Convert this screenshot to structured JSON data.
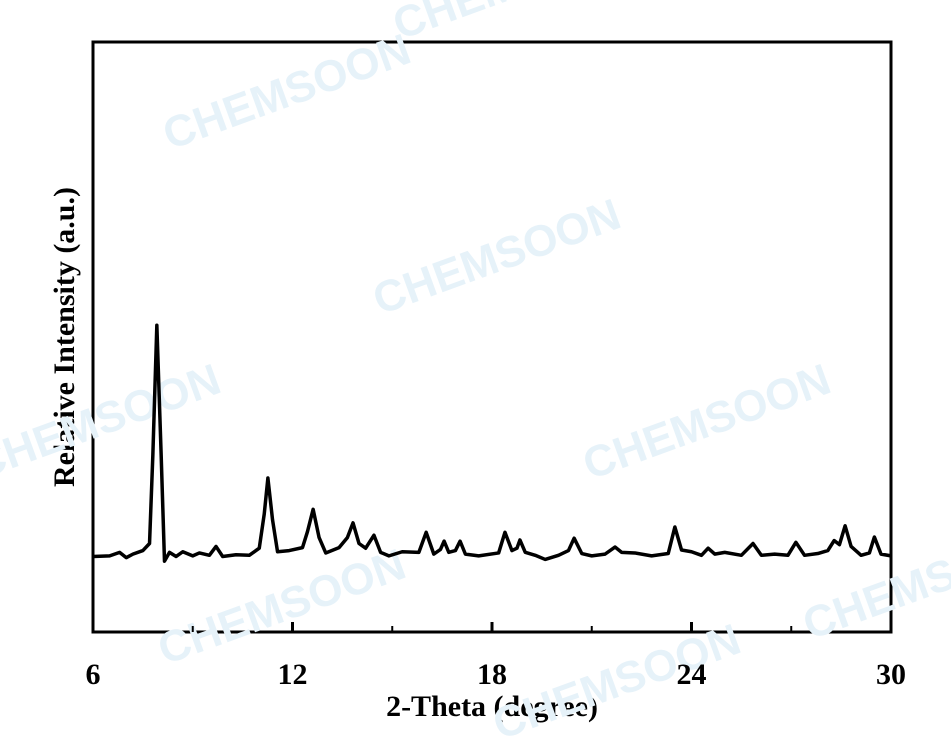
{
  "chart_data": {
    "type": "line",
    "xlabel": "2-Theta (degree)",
    "ylabel": "Relative Intensity (a.u.)",
    "watermark": "CHEMSOON",
    "xlim": [
      6,
      30
    ],
    "xticks": [
      6,
      12,
      18,
      24,
      30
    ],
    "xminorticks": [
      9,
      15,
      21,
      27
    ],
    "ylim": [
      0,
      100
    ],
    "series": [
      {
        "color": "#000000",
        "x": [
          6,
          6.5,
          6.8,
          7.0,
          7.2,
          7.5,
          7.7,
          7.8,
          7.92,
          8.05,
          8.15,
          8.3,
          8.5,
          8.7,
          9.0,
          9.2,
          9.5,
          9.7,
          9.9,
          10.3,
          10.7,
          11.0,
          11.15,
          11.26,
          11.4,
          11.55,
          11.9,
          12.3,
          12.45,
          12.62,
          12.8,
          13.0,
          13.4,
          13.65,
          13.82,
          14.0,
          14.2,
          14.45,
          14.65,
          14.9,
          15.3,
          15.8,
          16.02,
          16.25,
          16.45,
          16.56,
          16.7,
          16.9,
          17.04,
          17.2,
          17.6,
          18.2,
          18.39,
          18.6,
          18.75,
          18.84,
          19.0,
          19.3,
          19.6,
          20.0,
          20.3,
          20.47,
          20.7,
          21.0,
          21.4,
          21.7,
          21.9,
          22.3,
          22.8,
          23.3,
          23.5,
          23.7,
          24.0,
          24.3,
          24.5,
          24.7,
          25.0,
          25.5,
          25.85,
          26.1,
          26.5,
          26.9,
          27.14,
          27.4,
          27.8,
          28.1,
          28.29,
          28.45,
          28.62,
          28.8,
          29.1,
          29.35,
          29.5,
          29.7,
          30
        ],
        "values": [
          12.8,
          12.9,
          13.5,
          12.6,
          13.2,
          13.8,
          15,
          30,
          52,
          30,
          12,
          13.5,
          12.8,
          13.6,
          12.9,
          13.4,
          13,
          14.5,
          12.8,
          13.1,
          13.0,
          14.2,
          20,
          26.1,
          19,
          13.6,
          13.8,
          14.3,
          17,
          20.8,
          16,
          13.4,
          14.3,
          16,
          18.5,
          15,
          14.2,
          16.4,
          13.5,
          12.9,
          13.6,
          13.5,
          16.9,
          13.2,
          14,
          15.4,
          13.5,
          13.8,
          15.4,
          13.2,
          12.9,
          13.4,
          16.9,
          13.8,
          14.2,
          15.6,
          13.5,
          13.0,
          12.3,
          13.0,
          13.8,
          15.9,
          13.3,
          12.9,
          13.2,
          14.4,
          13.5,
          13.4,
          12.9,
          13.3,
          17.8,
          13.9,
          13.6,
          13.0,
          14.2,
          13.2,
          13.5,
          13.0,
          15.0,
          13.0,
          13.2,
          13.0,
          15.2,
          13.0,
          13.3,
          13.8,
          15.5,
          14.8,
          18.0,
          14.5,
          13.0,
          13.4,
          16.1,
          13.2,
          12.9
        ]
      }
    ]
  }
}
